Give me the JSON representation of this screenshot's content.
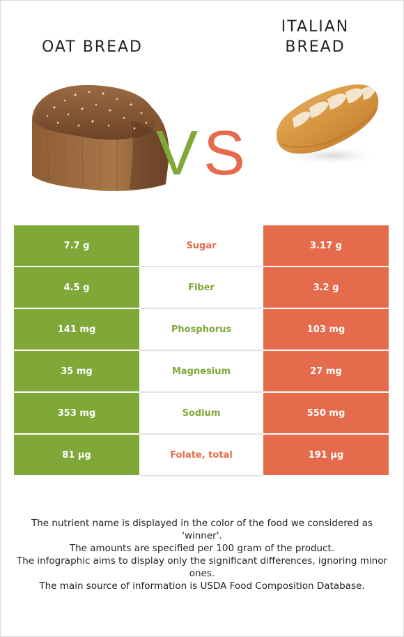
{
  "foods": {
    "left": {
      "name": "OAT BREAD",
      "color": "#7fa838",
      "image": "oat-bread-loaf"
    },
    "right": {
      "name_lines": [
        "ITALIAN",
        "BREAD"
      ],
      "color": "#e66b4c",
      "image": "italian-bread-loaf"
    }
  },
  "vs": {
    "v": "V",
    "s": "S"
  },
  "nutrients": [
    {
      "name": "Sugar",
      "left": "7.7 g",
      "right": "3.17 g",
      "winner": "right",
      "winner_color": "#e66b4c"
    },
    {
      "name": "Fiber",
      "left": "4.5 g",
      "right": "3.2 g",
      "winner": "left",
      "winner_color": "#7fa838"
    },
    {
      "name": "Phosphorus",
      "left": "141 mg",
      "right": "103 mg",
      "winner": "left",
      "winner_color": "#7fa838"
    },
    {
      "name": "Magnesium",
      "left": "35 mg",
      "right": "27 mg",
      "winner": "left",
      "winner_color": "#7fa838"
    },
    {
      "name": "Sodium",
      "left": "353 mg",
      "right": "550 mg",
      "winner": "left",
      "winner_color": "#7fa838"
    },
    {
      "name": "Folate, total",
      "left": "81 µg",
      "right": "191 µg",
      "winner": "right",
      "winner_color": "#e66b4c"
    }
  ],
  "footnote": [
    "The nutrient name is displayed in the color of the food we considered as 'winner'.",
    "The amounts are specified per 100 gram of the product.",
    "The infographic aims to display only the significant differences, ignoring minor ones.",
    "The main source of information is USDA Food Composition Database."
  ]
}
